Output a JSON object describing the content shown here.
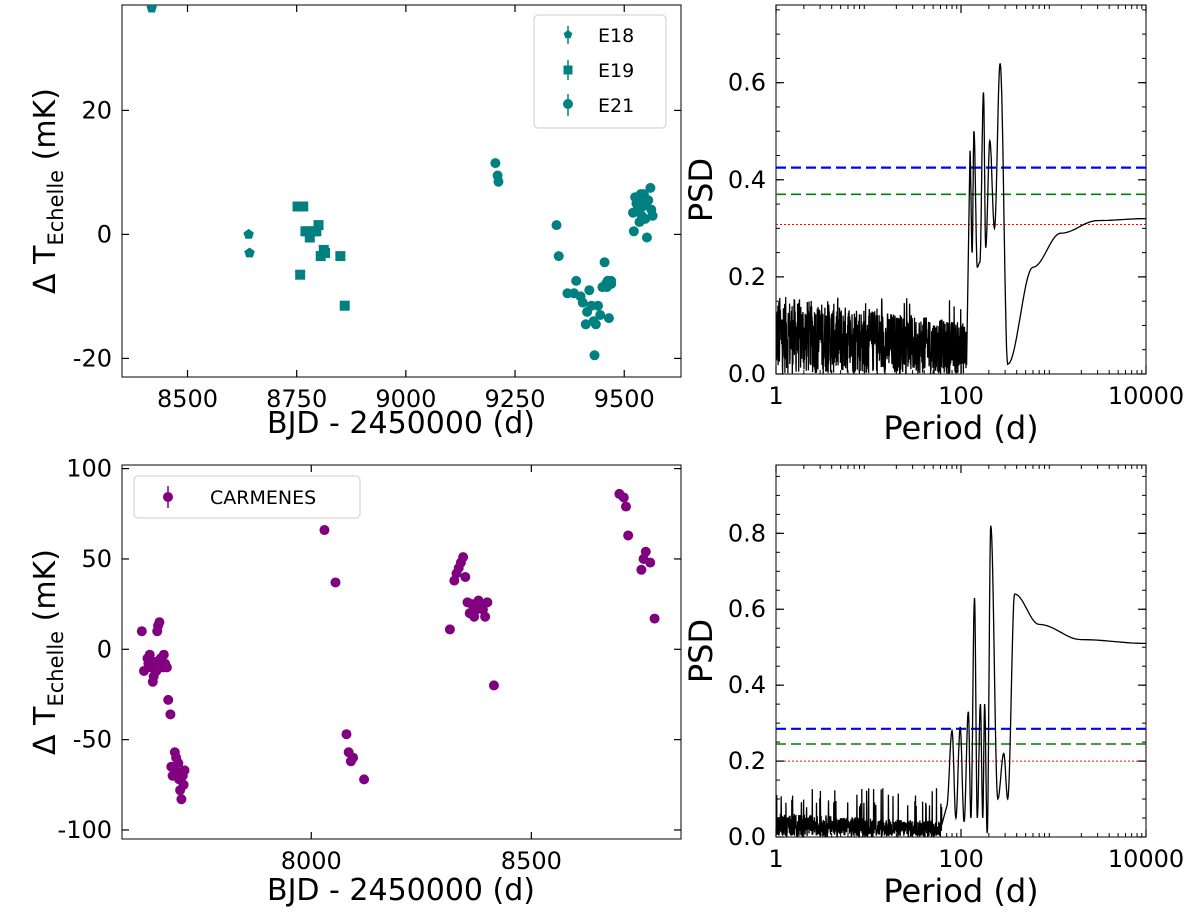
{
  "chart_data": [
    {
      "id": "tl",
      "type": "scatter",
      "xlabel": "BJD - 2450000 (d)",
      "ylabel_main": "Δ T",
      "ylabel_sub": "Echelle",
      "ylabel_unit": " (mK)",
      "xlim": [
        8350,
        9630
      ],
      "ylim": [
        -23,
        37
      ],
      "xticks": [
        8500,
        8750,
        9000,
        9250,
        9500
      ],
      "yticks": [
        -20,
        0,
        20
      ],
      "series": [
        {
          "name": "E18",
          "marker": "pentagon",
          "color": "#008080",
          "x": [
            8418,
            8640,
            8642
          ],
          "y": [
            36.5,
            0.0,
            -3.0
          ]
        },
        {
          "name": "E19",
          "marker": "square",
          "color": "#008080",
          "x": [
            8752,
            8758,
            8765,
            8770,
            8775,
            8780,
            8790,
            8795,
            8800,
            8805,
            8812,
            8815,
            8850,
            8860
          ],
          "y": [
            4.5,
            -6.5,
            4.5,
            0.5,
            0.5,
            -0.5,
            0.5,
            0.5,
            1.5,
            -3.5,
            -2.5,
            -3.0,
            -3.5,
            -11.5
          ]
        },
        {
          "name": "E21",
          "marker": "circle",
          "color": "#008080",
          "x": [
            9205,
            9210,
            9212,
            9345,
            9350,
            9370,
            9385,
            9390,
            9400,
            9405,
            9412,
            9415,
            9420,
            9425,
            9430,
            9432,
            9435,
            9440,
            9445,
            9450,
            9455,
            9458,
            9460,
            9462,
            9465,
            9470,
            9470,
            9520,
            9522,
            9525,
            9528,
            9530,
            9532,
            9535,
            9538,
            9540,
            9542,
            9545,
            9548,
            9550,
            9552,
            9555,
            9560,
            9562,
            9565
          ],
          "y": [
            11.5,
            9.5,
            8.5,
            1.5,
            -3.5,
            -9.5,
            -9.5,
            -7.5,
            -10.0,
            -11.0,
            -14.5,
            -12.5,
            -9.0,
            -11.5,
            -14.0,
            -19.5,
            -14.5,
            -11.5,
            -13.0,
            -8.5,
            -4.5,
            -8.0,
            -8.5,
            -7.5,
            -13.5,
            -7.5,
            -8.0,
            3.5,
            0.5,
            6.0,
            5.0,
            4.0,
            5.5,
            2.0,
            6.5,
            3.0,
            4.5,
            6.5,
            2.5,
            5.0,
            -0.5,
            5.5,
            7.5,
            4.0,
            3.0
          ]
        }
      ],
      "legend": {
        "location": "top-right",
        "entries": [
          "E18",
          "E19",
          "E21"
        ]
      }
    },
    {
      "id": "tr",
      "type": "line",
      "xlabel": "Period (d)",
      "ylabel": "PSD",
      "xscale": "log",
      "xlim": [
        1,
        10000
      ],
      "ylim": [
        0,
        0.76
      ],
      "xticks": [
        1,
        100,
        10000
      ],
      "xtick_labels": [
        "1",
        "100",
        "10000"
      ],
      "yticks": [
        0.0,
        0.2,
        0.4,
        0.6
      ],
      "ytick_labels": [
        "0.0",
        "0.2",
        "0.4",
        "0.6"
      ],
      "thresholds": [
        {
          "value": 0.425,
          "color": "#0000ff",
          "style": "dashed"
        },
        {
          "value": 0.37,
          "color": "#008000",
          "style": "dashed"
        },
        {
          "value": 0.308,
          "color": "#ff0000",
          "style": "dotted"
        }
      ],
      "noise": {
        "from": 1,
        "to": 115,
        "level": 0.09,
        "peak": 0.16
      },
      "peaks": [
        {
          "period": 125,
          "psd": 0.46
        },
        {
          "period": 132,
          "psd": 0.25
        },
        {
          "period": 138,
          "psd": 0.5
        },
        {
          "period": 150,
          "psd": 0.22
        },
        {
          "period": 160,
          "psd": 0.23
        },
        {
          "period": 175,
          "psd": 0.58
        },
        {
          "period": 185,
          "psd": 0.26
        },
        {
          "period": 205,
          "psd": 0.48
        },
        {
          "period": 230,
          "psd": 0.3
        },
        {
          "period": 265,
          "psd": 0.64
        },
        {
          "period": 320,
          "psd": 0.02
        },
        {
          "period": 600,
          "psd": 0.22
        },
        {
          "period": 1200,
          "psd": 0.29
        },
        {
          "period": 3000,
          "psd": 0.316
        },
        {
          "period": 10000,
          "psd": 0.32
        }
      ]
    },
    {
      "id": "bl",
      "type": "scatter",
      "xlabel": "BJD - 2450000 (d)",
      "ylabel_main": "Δ T",
      "ylabel_sub": "Echelle",
      "ylabel_unit": " (mK)",
      "xlim": [
        7570,
        8840
      ],
      "ylim": [
        -105,
        102
      ],
      "xticks": [
        8000,
        8500
      ],
      "yticks": [
        -100,
        -50,
        0,
        50,
        100
      ],
      "series": [
        {
          "name": "CARMENES",
          "marker": "circle",
          "color": "#800080",
          "x": [
            7615,
            7620,
            7628,
            7630,
            7633,
            7636,
            7640,
            7642,
            7645,
            7648,
            7650,
            7652,
            7655,
            7658,
            7660,
            7663,
            7665,
            7668,
            7672,
            7675,
            7680,
            7682,
            7685,
            7690,
            7693,
            7695,
            7698,
            7700,
            7702,
            7705,
            7708,
            7710,
            7712,
            8030,
            8055,
            8080,
            8085,
            8090,
            8095,
            8120,
            8315,
            8325,
            8330,
            8335,
            8340,
            8345,
            8350,
            8355,
            8360,
            8365,
            8370,
            8375,
            8380,
            8385,
            8390,
            8395,
            8400,
            8415,
            8700,
            8710,
            8715,
            8720,
            8750,
            8755,
            8760,
            8770,
            8780
          ],
          "y": [
            10,
            -12,
            -5,
            -8,
            -3,
            -10,
            -18,
            -15,
            -7,
            -12,
            10,
            13,
            15,
            -5,
            -7,
            -10,
            -3,
            -8,
            -10,
            -28,
            -36,
            -65,
            -70,
            -57,
            -60,
            -68,
            -63,
            -72,
            -78,
            -83,
            -70,
            -75,
            -67,
            66,
            37,
            -47,
            -57,
            -62,
            -60,
            -72,
            11,
            38,
            42,
            45,
            48,
            51,
            40,
            26,
            20,
            25,
            18,
            22,
            27,
            25,
            22,
            18,
            26,
            -20,
            86,
            84,
            79,
            63,
            44,
            50,
            54,
            48,
            17
          ]
        }
      ],
      "legend": {
        "location": "top-left",
        "entries": [
          "CARMENES"
        ]
      }
    },
    {
      "id": "br",
      "type": "line",
      "xlabel": "Period (d)",
      "ylabel": "PSD",
      "xscale": "log",
      "xlim": [
        1,
        10000
      ],
      "ylim": [
        0,
        0.98
      ],
      "xticks": [
        1,
        100,
        10000
      ],
      "xtick_labels": [
        "1",
        "100",
        "10000"
      ],
      "yticks": [
        0.0,
        0.2,
        0.4,
        0.6,
        0.8
      ],
      "ytick_labels": [
        "0.0",
        "0.2",
        "0.4",
        "0.6",
        "0.8"
      ],
      "thresholds": [
        {
          "value": 0.285,
          "color": "#0000ff",
          "style": "dashed"
        },
        {
          "value": 0.245,
          "color": "#008000",
          "style": "dashed"
        },
        {
          "value": 0.2,
          "color": "#ff0000",
          "style": "dotted"
        }
      ],
      "noise": {
        "from": 1,
        "to": 62,
        "level": 0.035,
        "peak": 0.13
      },
      "peaks": [
        {
          "period": 70,
          "psd": 0.08
        },
        {
          "period": 80,
          "psd": 0.28
        },
        {
          "period": 88,
          "psd": 0.05
        },
        {
          "period": 98,
          "psd": 0.29
        },
        {
          "period": 108,
          "psd": 0.04
        },
        {
          "period": 120,
          "psd": 0.33
        },
        {
          "period": 128,
          "psd": 0.05
        },
        {
          "period": 140,
          "psd": 0.63
        },
        {
          "period": 150,
          "psd": 0.05
        },
        {
          "period": 162,
          "psd": 0.35
        },
        {
          "period": 172,
          "psd": 0.05
        },
        {
          "period": 180,
          "psd": 0.35
        },
        {
          "period": 192,
          "psd": 0.01
        },
        {
          "period": 210,
          "psd": 0.82
        },
        {
          "period": 250,
          "psd": 0.1
        },
        {
          "period": 290,
          "psd": 0.22
        },
        {
          "period": 320,
          "psd": 0.1
        },
        {
          "period": 380,
          "psd": 0.64
        },
        {
          "period": 700,
          "psd": 0.56
        },
        {
          "period": 2000,
          "psd": 0.52
        },
        {
          "period": 10000,
          "psd": 0.51
        }
      ]
    }
  ]
}
